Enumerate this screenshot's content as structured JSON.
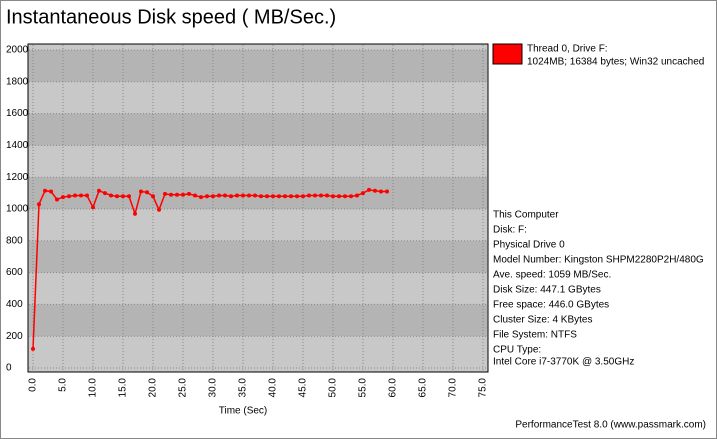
{
  "chart_data": {
    "type": "line",
    "title": "Instantaneous Disk speed ( MB/Sec.)",
    "x_label": "Time (Sec)",
    "x": [
      0,
      1,
      2,
      3,
      4,
      5,
      6,
      7,
      8,
      9,
      10,
      11,
      12,
      13,
      14,
      15,
      16,
      17,
      18,
      19,
      20,
      21,
      22,
      23,
      24,
      25,
      26,
      27,
      28,
      29,
      30,
      31,
      32,
      33,
      34,
      35,
      36,
      37,
      38,
      39,
      40,
      41,
      42,
      43,
      44,
      45,
      46,
      47,
      48,
      49,
      50,
      51,
      52,
      53,
      54,
      55,
      56,
      57,
      58,
      59
    ],
    "series": [
      {
        "name": "Thread 0, Drive F:",
        "subname": "1024MB; 16384 bytes; Win32 uncached",
        "color": "#ff0000",
        "values": [
          120,
          1030,
          1115,
          1110,
          1060,
          1075,
          1080,
          1085,
          1085,
          1085,
          1010,
          1115,
          1100,
          1085,
          1080,
          1080,
          1080,
          970,
          1110,
          1105,
          1080,
          995,
          1095,
          1090,
          1090,
          1090,
          1095,
          1085,
          1075,
          1080,
          1080,
          1085,
          1085,
          1080,
          1085,
          1085,
          1085,
          1085,
          1080,
          1080,
          1080,
          1080,
          1080,
          1080,
          1080,
          1080,
          1085,
          1085,
          1085,
          1085,
          1080,
          1080,
          1080,
          1080,
          1085,
          1100,
          1120,
          1115,
          1110,
          1110
        ]
      }
    ],
    "xlim": [
      0,
      75
    ],
    "ylim": [
      0,
      2000
    ],
    "xticks": [
      {
        "value": 0,
        "label": "0.0"
      },
      {
        "value": 5,
        "label": "5.0"
      },
      {
        "value": 10,
        "label": "10.0"
      },
      {
        "value": 15,
        "label": "15.0"
      },
      {
        "value": 20,
        "label": "20.0"
      },
      {
        "value": 25,
        "label": "25.0"
      },
      {
        "value": 30,
        "label": "30.0"
      },
      {
        "value": 35,
        "label": "35.0"
      },
      {
        "value": 40,
        "label": "40.0"
      },
      {
        "value": 45,
        "label": "45.0"
      },
      {
        "value": 50,
        "label": "50.0"
      },
      {
        "value": 55,
        "label": "55.0"
      },
      {
        "value": 60,
        "label": "60.0"
      },
      {
        "value": 65,
        "label": "65.0"
      },
      {
        "value": 70,
        "label": "70.0"
      },
      {
        "value": 75,
        "label": "75.0"
      }
    ],
    "yticks": [
      0,
      200,
      400,
      600,
      800,
      1000,
      1200,
      1400,
      1600,
      1800,
      2000
    ],
    "grid": true
  },
  "info": [
    "This Computer",
    "Disk: F:",
    "Physical Drive 0",
    "Model Number: Kingston SHPM2280P2H/480G",
    "Ave. speed: 1059 MB/Sec.",
    "Disk Size: 447.1 GBytes",
    "Free space: 446.0 GBytes",
    "Cluster Size: 4 KBytes",
    "File System: NTFS",
    "CPU Type:",
    "Intel Core i7-3770K @ 3.50GHz"
  ],
  "footer": "PerformanceTest 8.0 (www.passmark.com)"
}
